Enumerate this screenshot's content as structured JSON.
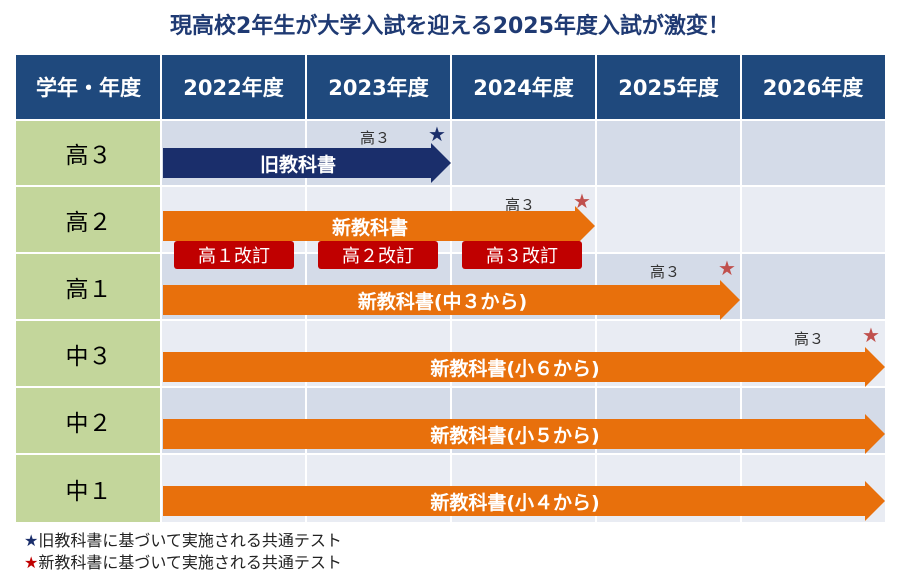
{
  "title": "現高校2年生が大学入試を迎える2025年度入試が激変！",
  "header": {
    "corner": "学年・年度",
    "years": [
      "2022年度",
      "2023年度",
      "2024年度",
      "2025年度",
      "2026年度"
    ]
  },
  "rows": [
    "高３",
    "高２",
    "高１",
    "中３",
    "中２",
    "中１"
  ],
  "arrows": {
    "old": "旧教科書",
    "new_k2": "新教科書",
    "new_k1": "新教科書(中３から)",
    "new_c3": "新教科書(小６から)",
    "new_c2": "新教科書(小５から)",
    "new_c1": "新教科書(小４から)"
  },
  "markers": {
    "kou3_a": "高３",
    "kou3_b": "高３",
    "kou3_c": "高３",
    "kou3_d": "高３",
    "star": "★"
  },
  "badges": [
    "高１改訂",
    "高２改訂",
    "高３改訂"
  ],
  "legend": {
    "star": "★",
    "old_text": "旧教科書に基づいて実施される共通テスト",
    "new_text": "新教科書に基づいて実施される共通テスト"
  },
  "colors": {
    "header": "#1f497d",
    "row_label": "#c3d69b",
    "old_arrow": "#1a2e6b",
    "new_arrow": "#e8700c",
    "badge": "#c00000",
    "new_star": "#c0504d"
  }
}
